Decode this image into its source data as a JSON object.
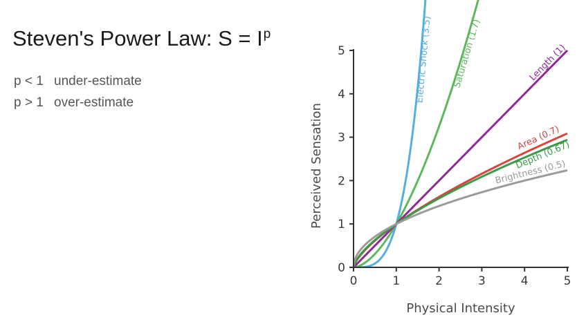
{
  "header": {
    "title_base": "Steven's Power Law: S = I",
    "title_exponent": "p"
  },
  "notes": [
    {
      "condition": "p < 1",
      "meaning": "under-estimate"
    },
    {
      "condition": "p > 1",
      "meaning": "over-estimate"
    }
  ],
  "chart_data": {
    "type": "line",
    "function": "S = I^p",
    "xlabel": "Physical Intensity",
    "ylabel": "Perceived Sensation",
    "xlim": [
      0,
      5
    ],
    "ylim": [
      0,
      5
    ],
    "xticks": [
      0,
      1,
      2,
      3,
      4,
      5
    ],
    "yticks": [
      0,
      1,
      2,
      3,
      4,
      5
    ],
    "grid": false,
    "series": [
      {
        "name": "Electric Shock (3.5)",
        "exponent": 3.5,
        "color": "#56aee0"
      },
      {
        "name": "Saturation (1.7)",
        "exponent": 1.7,
        "color": "#5cb85c"
      },
      {
        "name": "Length (1)",
        "exponent": 1.0,
        "color": "#8e2a98"
      },
      {
        "name": "Area (0.7)",
        "exponent": 0.7,
        "color": "#d9453d"
      },
      {
        "name": "Depth (0.67)",
        "exponent": 0.67,
        "color": "#3a9a48"
      },
      {
        "name": "Brightness (0.5)",
        "exponent": 0.5,
        "color": "#9b9b9b"
      }
    ]
  }
}
